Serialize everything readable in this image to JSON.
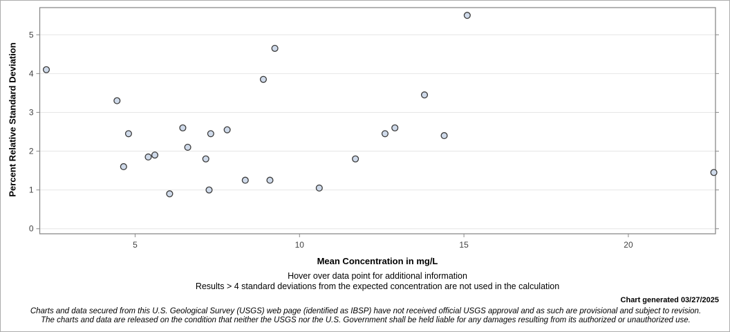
{
  "window": {
    "background": "#ffffff",
    "border_color": "#ababab"
  },
  "chart_data": {
    "type": "scatter",
    "title": "",
    "xlabel": "Mean Concentration in mg/L",
    "ylabel": "Percent Relative Standard Deviation",
    "xlim": [
      2.1,
      22.65
    ],
    "ylim": [
      -0.13,
      5.7
    ],
    "x_ticks": [
      5,
      10,
      15,
      20
    ],
    "y_ticks": [
      0,
      1,
      2,
      3,
      4,
      5
    ],
    "grid": "horizontal-only",
    "legend": "none",
    "colors": {
      "marker_fill": "#cfdaea",
      "marker_stroke": "#3a3a3a",
      "frame": "#8a8a8a",
      "gridline": "#e6e6e6",
      "tick_label": "#424242"
    },
    "points": [
      [
        2.3,
        4.1
      ],
      [
        4.45,
        3.3
      ],
      [
        4.65,
        1.6
      ],
      [
        4.8,
        2.45
      ],
      [
        5.4,
        1.85
      ],
      [
        5.6,
        1.9
      ],
      [
        6.05,
        0.9
      ],
      [
        6.45,
        2.6
      ],
      [
        6.6,
        2.1
      ],
      [
        7.15,
        1.8
      ],
      [
        7.25,
        1.0
      ],
      [
        7.3,
        2.45
      ],
      [
        7.8,
        2.55
      ],
      [
        8.35,
        1.25
      ],
      [
        8.9,
        3.85
      ],
      [
        9.1,
        1.25
      ],
      [
        9.25,
        4.65
      ],
      [
        10.6,
        1.05
      ],
      [
        11.7,
        1.8
      ],
      [
        12.6,
        2.45
      ],
      [
        12.9,
        2.6
      ],
      [
        13.8,
        3.45
      ],
      [
        14.4,
        2.4
      ],
      [
        15.1,
        5.5
      ],
      [
        22.6,
        1.45
      ]
    ]
  },
  "notes": {
    "hover_note": "Hover over data point for additional information",
    "results_note": "Results > 4 standard deviations from the expected concentration are not used in the calculation",
    "generated_note": "Chart generated 03/27/2025",
    "disclaimer_line1": "Charts and data secured from this U.S. Geological Survey (USGS) web page (identified as IBSP) have not received official USGS approval and as such are provisional and subject to revision.",
    "disclaimer_line2": "The charts and data are released on the condition that neither the USGS nor the U.S. Government shall be held liable for any damages resulting from its authorized or unauthorized use."
  }
}
